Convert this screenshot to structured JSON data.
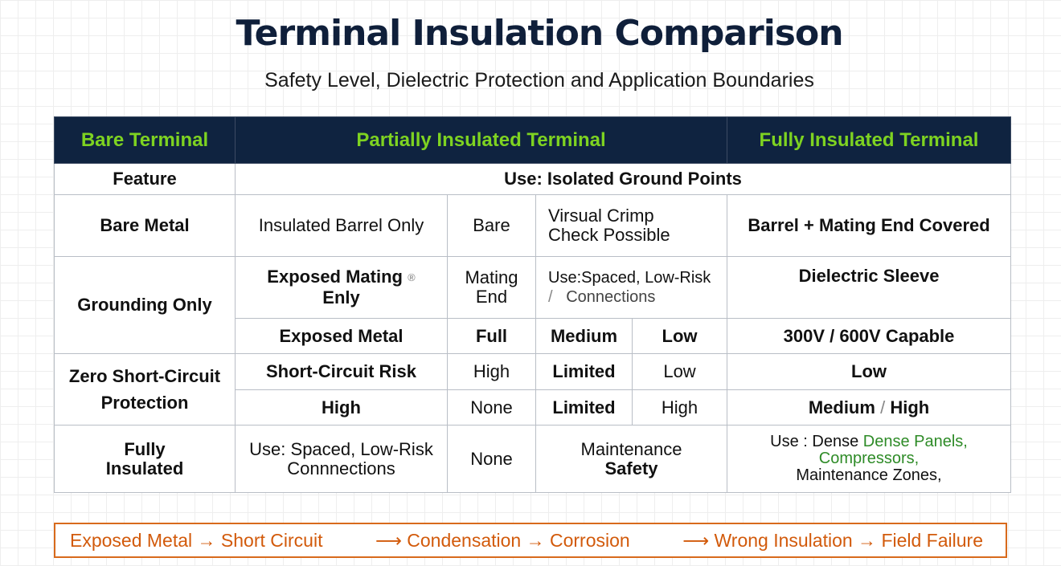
{
  "title": "Terminal Insulation Comparison",
  "subtitle": "Safety Level, Dielectric Protection and Application Boundaries",
  "header": {
    "col1": "Bare Terminal",
    "col2": "Partially Insulated Terminal",
    "col3": "Fully Insulated Terminal"
  },
  "row_feature": {
    "label": "Feature",
    "value": "Use: Isolated Ground Points"
  },
  "row_bare_metal": {
    "label": "Bare Metal",
    "c1": "Insulated Barrel Only",
    "c2": "Bare",
    "c3_line1": "Virsual Crimp",
    "c3_line2": "Check Possible",
    "c4": "Barrel + Mating End Covered"
  },
  "row_grounding": {
    "label": "Grounding Only",
    "sub1": {
      "c1_line1": "Exposed Mating",
      "c1_icon": "®",
      "c1_line2": "Enly",
      "c2_line1": "Mating",
      "c2_line2": "End",
      "c3_line1": "Use:Spaced, Low-Risk",
      "c3_slash": "/",
      "c3_line2": "Connections",
      "c4": "Dielectric Sleeve"
    },
    "sub2": {
      "c1": "Exposed Metal",
      "c2": "Full",
      "c3a": "Medium",
      "c3b": "Low",
      "c4": "300V / 600V Capable"
    }
  },
  "row_zero": {
    "label_line1": "Zero Short-Circuit",
    "label_line2": "Protection",
    "sub1": {
      "c1": "Short-Circuit Risk",
      "c2": "High",
      "c3a": "Limited",
      "c3b": "Low",
      "c4": "Low"
    },
    "sub2": {
      "c1": "High",
      "c2": "None",
      "c3a": "Limited",
      "c3b": "High",
      "c4a": "Medium",
      "c4_slash": "/",
      "c4b": "High"
    }
  },
  "row_fully": {
    "label_line1": "Fully",
    "label_line2": "Insulated",
    "c1_line1": "Use: Spaced, Low-Risk",
    "c1_line2": "Connnections",
    "c2": "None",
    "c3_line1": "Maintenance",
    "c3_line2": "Safety",
    "c4_prefix": "Use : Dense",
    "c4_green1": "Dense Panels,",
    "c4_green2": "Compressors,",
    "c4_line3": "Maintenance Zones,"
  },
  "footer": {
    "item1": "Exposed Metal → Short Circuit",
    "item2": "⟶  Condensation → Corrosion",
    "item3": "⟶  Wrong Insulation → Field Failure"
  },
  "colors": {
    "header_bg": "#0f2340",
    "header_text": "#7ed321",
    "title": "#0f1f3a",
    "green": "#3a9a2a",
    "red": "#c81d1d",
    "orange": "#d25a0b"
  }
}
